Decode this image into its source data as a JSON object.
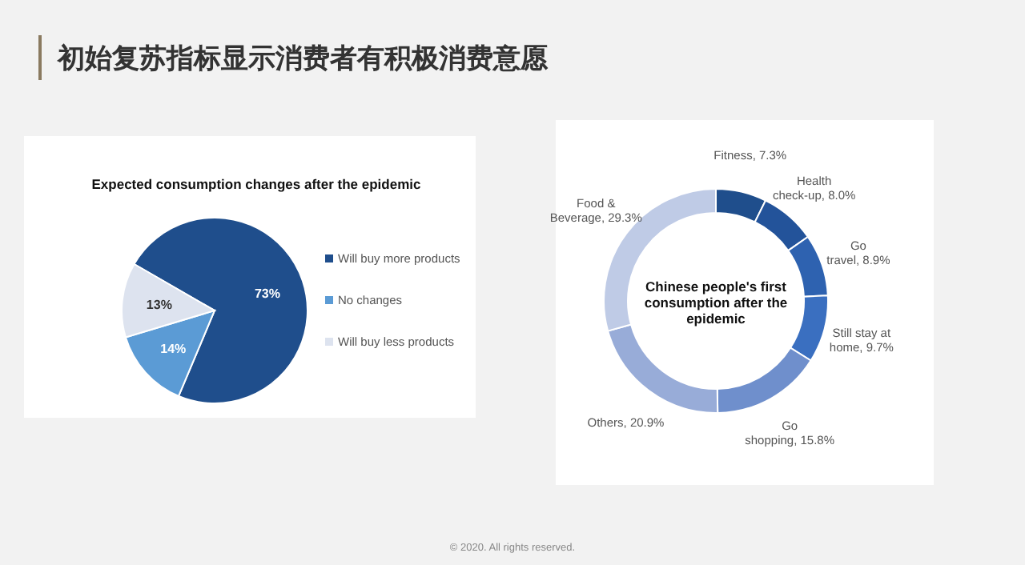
{
  "chart_data": [
    {
      "type": "other",
      "title": "初始复苏指标显示消费者有积极消费意愿",
      "annotations": [
        "© 2020. All rights reserved."
      ]
    },
    {
      "type": "pie",
      "title": "Expected consumption changes after the epidemic",
      "legend": "right",
      "categories": [
        "Will buy more products",
        "No changes",
        "Will buy less products"
      ],
      "values": [
        73,
        14,
        13
      ],
      "value_labels": [
        "73%",
        "14%",
        "13%"
      ],
      "colors": [
        "#1f4e8c",
        "#5b9bd5",
        "#dde3ef"
      ]
    },
    {
      "type": "donut",
      "title": "Chinese people's first consumption after the epidemic",
      "categories": [
        "Fitness",
        "Health check-up",
        "Go travel",
        "Still stay at home",
        "Go shopping",
        "Others",
        "Food & Beverage"
      ],
      "values": [
        7.3,
        8.0,
        8.9,
        9.7,
        15.8,
        20.9,
        29.3
      ],
      "value_labels": [
        "7.3%",
        "8.0%",
        "8.9%",
        "9.7%",
        "15.8%",
        "20.9%",
        "29.3%"
      ],
      "colors": [
        "#1f4e8c",
        "#23539a",
        "#2e62b0",
        "#3a6fc0",
        "#6f8fcc",
        "#98acd8",
        "#bfcbe6"
      ]
    }
  ]
}
